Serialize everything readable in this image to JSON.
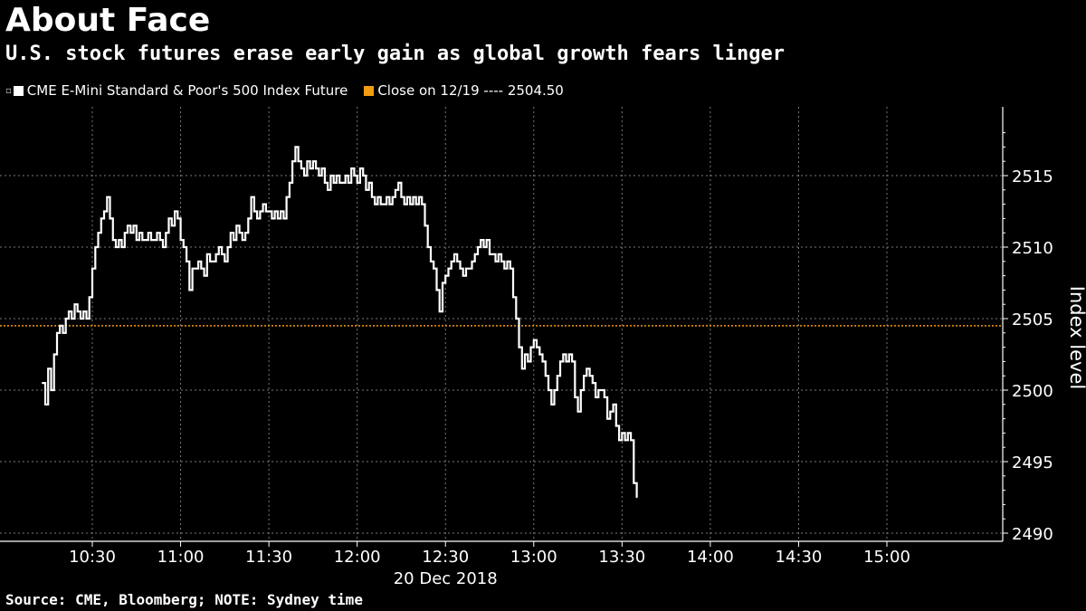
{
  "header": {
    "title": "About Face",
    "subtitle": "U.S. stock futures erase early gain as global growth fears linger"
  },
  "legend": {
    "series_label": "CME E-Mini Standard & Poor's 500 Index Future",
    "series_color": "#ffffff",
    "close_label": "Close on 12/19 ---- 2504.50",
    "close_color": "#f39c12"
  },
  "footer": {
    "source": "Source: CME, Bloomberg; NOTE: Sydney time"
  },
  "chart_data": {
    "type": "line",
    "title": "About Face",
    "subtitle": "U.S. stock futures erase early gain as global growth fears linger",
    "xlabel": "20 Dec 2018",
    "ylabel": "Index level",
    "x_ticks": [
      "10:30",
      "11:00",
      "11:30",
      "12:00",
      "12:30",
      "13:00",
      "13:30",
      "14:00",
      "14:30",
      "15:00"
    ],
    "y_ticks": [
      2490,
      2495,
      2500,
      2505,
      2510,
      2515
    ],
    "ylim": [
      2489,
      2519
    ],
    "xlim": [
      "10:13",
      "15:44"
    ],
    "grid": true,
    "legend_position": "top-left",
    "reference_line": {
      "name": "Close on 12/19",
      "value": 2504.5,
      "color": "#f39c12"
    },
    "series": [
      {
        "name": "CME E-Mini Standard & Poor's 500 Index Future",
        "color": "#ffffff",
        "points": [
          [
            "10:13",
            2500.5
          ],
          [
            "10:14",
            2499.0
          ],
          [
            "10:15",
            2501.5
          ],
          [
            "10:16",
            2500.0
          ],
          [
            "10:17",
            2502.5
          ],
          [
            "10:18",
            2504.0
          ],
          [
            "10:19",
            2504.5
          ],
          [
            "10:20",
            2504.0
          ],
          [
            "10:21",
            2505.0
          ],
          [
            "10:22",
            2505.5
          ],
          [
            "10:23",
            2505.0
          ],
          [
            "10:24",
            2506.0
          ],
          [
            "10:25",
            2505.5
          ],
          [
            "10:26",
            2505.0
          ],
          [
            "10:27",
            2505.5
          ],
          [
            "10:28",
            2505.0
          ],
          [
            "10:29",
            2506.5
          ],
          [
            "10:30",
            2508.5
          ],
          [
            "10:31",
            2510.0
          ],
          [
            "10:32",
            2511.0
          ],
          [
            "10:33",
            2512.0
          ],
          [
            "10:34",
            2512.5
          ],
          [
            "10:35",
            2513.5
          ],
          [
            "10:36",
            2512.0
          ],
          [
            "10:37",
            2510.5
          ],
          [
            "10:38",
            2510.0
          ],
          [
            "10:39",
            2510.5
          ],
          [
            "10:40",
            2510.0
          ],
          [
            "10:41",
            2511.0
          ],
          [
            "10:42",
            2511.5
          ],
          [
            "10:43",
            2511.0
          ],
          [
            "10:44",
            2511.5
          ],
          [
            "10:45",
            2510.5
          ],
          [
            "10:46",
            2511.0
          ],
          [
            "10:47",
            2510.5
          ],
          [
            "10:48",
            2510.5
          ],
          [
            "10:49",
            2511.0
          ],
          [
            "10:50",
            2510.5
          ],
          [
            "10:51",
            2510.5
          ],
          [
            "10:52",
            2511.0
          ],
          [
            "10:53",
            2510.5
          ],
          [
            "10:54",
            2510.0
          ],
          [
            "10:55",
            2511.0
          ],
          [
            "10:56",
            2512.0
          ],
          [
            "10:57",
            2511.5
          ],
          [
            "10:58",
            2512.5
          ],
          [
            "10:59",
            2512.0
          ],
          [
            "11:00",
            2510.5
          ],
          [
            "11:01",
            2510.0
          ],
          [
            "11:02",
            2509.0
          ],
          [
            "11:03",
            2507.0
          ],
          [
            "11:04",
            2508.5
          ],
          [
            "11:05",
            2508.5
          ],
          [
            "11:06",
            2509.0
          ],
          [
            "11:07",
            2508.5
          ],
          [
            "11:08",
            2508.0
          ],
          [
            "11:09",
            2509.5
          ],
          [
            "11:10",
            2509.0
          ],
          [
            "11:11",
            2509.0
          ],
          [
            "11:12",
            2509.5
          ],
          [
            "11:13",
            2510.0
          ],
          [
            "11:14",
            2509.5
          ],
          [
            "11:15",
            2509.0
          ],
          [
            "11:16",
            2510.0
          ],
          [
            "11:17",
            2511.0
          ],
          [
            "11:18",
            2510.5
          ],
          [
            "11:19",
            2511.5
          ],
          [
            "11:20",
            2511.0
          ],
          [
            "11:21",
            2510.5
          ],
          [
            "11:22",
            2511.0
          ],
          [
            "11:23",
            2512.0
          ],
          [
            "11:24",
            2513.5
          ],
          [
            "11:25",
            2512.5
          ],
          [
            "11:26",
            2512.0
          ],
          [
            "11:27",
            2512.5
          ],
          [
            "11:28",
            2513.0
          ],
          [
            "11:29",
            2512.5
          ],
          [
            "11:30",
            2512.5
          ],
          [
            "11:31",
            2512.0
          ],
          [
            "11:32",
            2512.5
          ],
          [
            "11:33",
            2512.0
          ],
          [
            "11:34",
            2512.5
          ],
          [
            "11:35",
            2512.0
          ],
          [
            "11:36",
            2513.5
          ],
          [
            "11:37",
            2514.5
          ],
          [
            "11:38",
            2516.0
          ],
          [
            "11:39",
            2517.0
          ],
          [
            "11:40",
            2516.0
          ],
          [
            "11:41",
            2515.5
          ],
          [
            "11:42",
            2515.0
          ],
          [
            "11:43",
            2516.0
          ],
          [
            "11:44",
            2515.5
          ],
          [
            "11:45",
            2516.0
          ],
          [
            "11:46",
            2515.5
          ],
          [
            "11:47",
            2515.0
          ],
          [
            "11:48",
            2515.5
          ],
          [
            "11:49",
            2514.5
          ],
          [
            "11:50",
            2514.0
          ],
          [
            "11:51",
            2515.0
          ],
          [
            "11:52",
            2514.5
          ],
          [
            "11:53",
            2515.0
          ],
          [
            "11:54",
            2514.5
          ],
          [
            "11:55",
            2514.5
          ],
          [
            "11:56",
            2515.0
          ],
          [
            "11:57",
            2514.5
          ],
          [
            "11:58",
            2515.5
          ],
          [
            "11:59",
            2515.0
          ],
          [
            "12:00",
            2514.5
          ],
          [
            "12:01",
            2515.5
          ],
          [
            "12:02",
            2515.0
          ],
          [
            "12:03",
            2514.0
          ],
          [
            "12:04",
            2514.5
          ],
          [
            "12:05",
            2513.5
          ],
          [
            "12:06",
            2513.0
          ],
          [
            "12:07",
            2513.5
          ],
          [
            "12:08",
            2513.0
          ],
          [
            "12:09",
            2513.0
          ],
          [
            "12:10",
            2513.5
          ],
          [
            "12:11",
            2513.0
          ],
          [
            "12:12",
            2513.5
          ],
          [
            "12:13",
            2514.0
          ],
          [
            "12:14",
            2514.5
          ],
          [
            "12:15",
            2513.5
          ],
          [
            "12:16",
            2513.0
          ],
          [
            "12:17",
            2513.5
          ],
          [
            "12:18",
            2513.0
          ],
          [
            "12:19",
            2513.5
          ],
          [
            "12:20",
            2513.0
          ],
          [
            "12:21",
            2513.5
          ],
          [
            "12:22",
            2513.0
          ],
          [
            "12:23",
            2511.5
          ],
          [
            "12:24",
            2510.0
          ],
          [
            "12:25",
            2509.0
          ],
          [
            "12:26",
            2508.5
          ],
          [
            "12:27",
            2507.0
          ],
          [
            "12:28",
            2505.5
          ],
          [
            "12:29",
            2507.5
          ],
          [
            "12:30",
            2508.0
          ],
          [
            "12:31",
            2508.5
          ],
          [
            "12:32",
            2509.0
          ],
          [
            "12:33",
            2509.5
          ],
          [
            "12:34",
            2509.0
          ],
          [
            "12:35",
            2508.5
          ],
          [
            "12:36",
            2508.0
          ],
          [
            "12:37",
            2508.5
          ],
          [
            "12:38",
            2508.5
          ],
          [
            "12:39",
            2509.0
          ],
          [
            "12:40",
            2509.5
          ],
          [
            "12:41",
            2510.0
          ],
          [
            "12:42",
            2510.5
          ],
          [
            "12:43",
            2510.0
          ],
          [
            "12:44",
            2510.5
          ],
          [
            "12:45",
            2509.5
          ],
          [
            "12:46",
            2509.5
          ],
          [
            "12:47",
            2509.0
          ],
          [
            "12:48",
            2509.5
          ],
          [
            "12:49",
            2509.0
          ],
          [
            "12:50",
            2508.5
          ],
          [
            "12:51",
            2509.0
          ],
          [
            "12:52",
            2508.5
          ],
          [
            "12:53",
            2506.5
          ],
          [
            "12:54",
            2505.0
          ],
          [
            "12:55",
            2503.0
          ],
          [
            "12:56",
            2501.5
          ],
          [
            "12:57",
            2502.5
          ],
          [
            "12:58",
            2502.0
          ],
          [
            "12:59",
            2503.0
          ],
          [
            "13:00",
            2503.5
          ],
          [
            "13:01",
            2503.0
          ],
          [
            "13:02",
            2502.5
          ],
          [
            "13:03",
            2502.0
          ],
          [
            "13:04",
            2501.0
          ],
          [
            "13:05",
            2500.0
          ],
          [
            "13:06",
            2499.0
          ],
          [
            "13:07",
            2500.0
          ],
          [
            "13:08",
            2501.0
          ],
          [
            "13:09",
            2502.0
          ],
          [
            "13:10",
            2502.5
          ],
          [
            "13:11",
            2502.0
          ],
          [
            "13:12",
            2502.5
          ],
          [
            "13:13",
            2502.0
          ],
          [
            "13:14",
            2499.5
          ],
          [
            "13:15",
            2498.5
          ],
          [
            "13:16",
            2500.0
          ],
          [
            "13:17",
            2501.0
          ],
          [
            "13:18",
            2501.5
          ],
          [
            "13:19",
            2501.0
          ],
          [
            "13:20",
            2500.5
          ],
          [
            "13:21",
            2499.5
          ],
          [
            "13:22",
            2500.0
          ],
          [
            "13:23",
            2500.0
          ],
          [
            "13:24",
            2499.5
          ],
          [
            "13:25",
            2498.0
          ],
          [
            "13:26",
            2498.5
          ],
          [
            "13:27",
            2499.0
          ],
          [
            "13:28",
            2497.5
          ],
          [
            "13:29",
            2496.5
          ],
          [
            "13:30",
            2497.0
          ],
          [
            "13:31",
            2496.5
          ],
          [
            "13:32",
            2497.0
          ],
          [
            "13:33",
            2496.5
          ],
          [
            "13:34",
            2493.5
          ],
          [
            "13:35",
            2492.5
          ]
        ]
      }
    ]
  }
}
